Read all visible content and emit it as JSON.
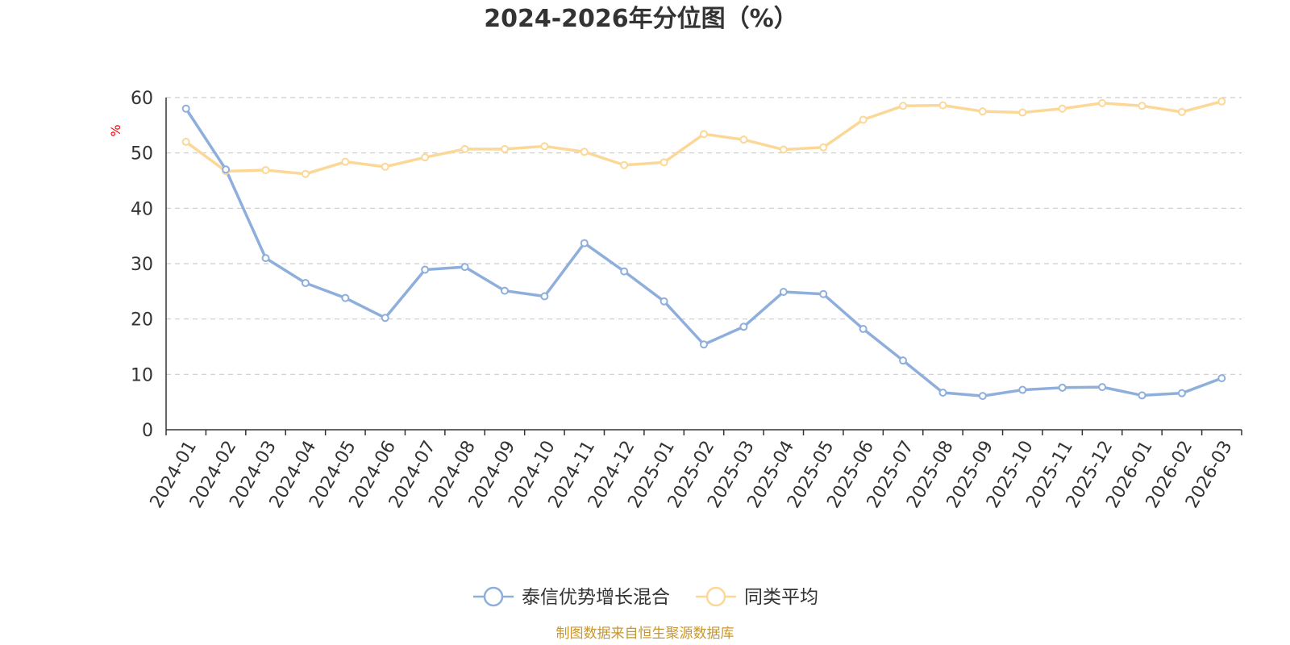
{
  "chart_data": {
    "type": "line",
    "title": "2024-2026年分位图（%）",
    "ylabel": "%",
    "xlabel": "",
    "ylim": [
      0,
      60
    ],
    "yticks": [
      0,
      10,
      20,
      30,
      40,
      50,
      60
    ],
    "grid": true,
    "legend_position": "bottom-center",
    "categories": [
      "2024-01",
      "2024-02",
      "2024-03",
      "2024-04",
      "2024-05",
      "2024-06",
      "2024-07",
      "2024-08",
      "2024-09",
      "2024-10",
      "2024-11",
      "2024-12",
      "2025-01",
      "2025-02",
      "2025-03",
      "2025-04",
      "2025-05",
      "2025-06",
      "2025-07",
      "2025-08",
      "2025-09",
      "2025-10",
      "2025-11",
      "2025-12",
      "2026-01",
      "2026-02",
      "2026-03"
    ],
    "series": [
      {
        "name": "泰信优势增长混合",
        "color": "#8eaedb",
        "values": [
          58.0,
          47.0,
          31.0,
          26.5,
          23.8,
          20.2,
          28.9,
          29.4,
          25.1,
          24.1,
          33.7,
          28.6,
          23.2,
          15.4,
          18.6,
          24.9,
          24.5,
          18.2,
          12.5,
          6.7,
          6.1,
          7.2,
          7.6,
          7.7,
          6.2,
          6.6,
          9.3
        ]
      },
      {
        "name": "同类平均",
        "color": "#fbd898",
        "values": [
          52.0,
          46.7,
          46.9,
          46.2,
          48.4,
          47.5,
          49.2,
          50.7,
          50.7,
          51.2,
          50.2,
          47.8,
          48.3,
          53.4,
          52.4,
          50.6,
          51.0,
          56.0,
          58.5,
          58.6,
          57.5,
          57.3,
          58.0,
          59.0,
          58.5,
          57.4,
          59.3
        ]
      }
    ]
  },
  "source": "制图数据来自恒生聚源数据库"
}
